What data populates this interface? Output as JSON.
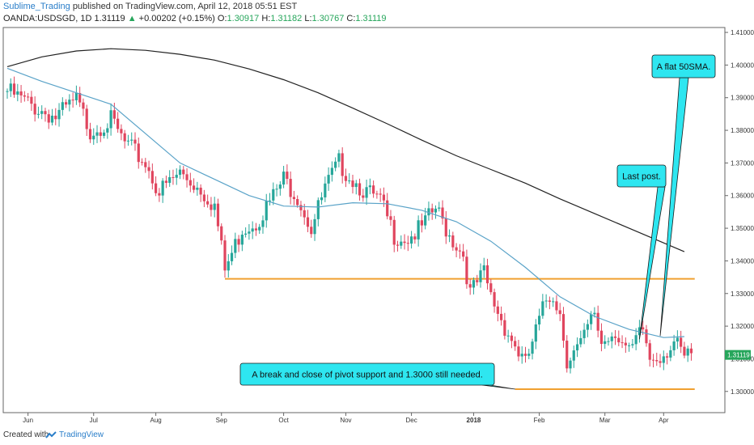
{
  "header": {
    "author": "Sublime_Trading",
    "published": "published on TradingView.com, April 12, 2018 05:51 EST",
    "symbol": "OANDA:USDSGD, 1D",
    "last": "1.31119",
    "change": "+0.00202 (+0.15%)",
    "o_label": "O:",
    "o_val": "1.30917",
    "h_label": "H:",
    "h_val": "1.31182",
    "l_label": "L:",
    "l_val": "1.30767",
    "c_label": "C:",
    "c_val": "1.31119"
  },
  "footer": {
    "created_with": "Created with",
    "brand": "TradingView"
  },
  "colors": {
    "up": "#26a69a",
    "down": "#e0455e",
    "sma50": "#5aa3c8",
    "sma200": "#222222",
    "level": "#f0a030",
    "callout": "#2ee6f0",
    "price_tag": "#26a65b"
  },
  "chart_data": {
    "type": "candlestick",
    "ylim": [
      1.2935,
      1.4115
    ],
    "ytick_labels": [
      "1.41000",
      "1.40000",
      "1.39000",
      "1.38000",
      "1.37000",
      "1.36000",
      "1.35000",
      "1.34000",
      "1.33000",
      "1.32000",
      "1.31000",
      "1.30000"
    ],
    "ytick_values": [
      1.41,
      1.4,
      1.39,
      1.38,
      1.37,
      1.36,
      1.35,
      1.34,
      1.33,
      1.32,
      1.31,
      1.3
    ],
    "xtick_labels": [
      "Jun",
      "Jul",
      "Aug",
      "Sep",
      "Oct",
      "Nov",
      "Dec",
      "2018",
      "Feb",
      "Mar",
      "Apr"
    ],
    "xtick_bars": [
      6,
      25,
      43,
      62,
      80,
      98,
      117,
      135,
      154,
      173,
      190
    ],
    "price_label": "1.31119",
    "horizontal_levels": [
      {
        "value": 1.3345,
        "from_bar": 63,
        "to_bar": 199
      },
      {
        "value": 1.3007,
        "from_bar": 147,
        "to_bar": 199
      }
    ],
    "sma200": [
      [
        0,
        1.3995
      ],
      [
        10,
        1.4025
      ],
      [
        20,
        1.4043
      ],
      [
        30,
        1.405
      ],
      [
        40,
        1.4045
      ],
      [
        50,
        1.4033
      ],
      [
        60,
        1.4015
      ],
      [
        70,
        1.3988
      ],
      [
        80,
        1.3955
      ],
      [
        90,
        1.3915
      ],
      [
        100,
        1.3868
      ],
      [
        110,
        1.382
      ],
      [
        120,
        1.377
      ],
      [
        130,
        1.3722
      ],
      [
        140,
        1.368
      ],
      [
        150,
        1.3638
      ],
      [
        160,
        1.359
      ],
      [
        170,
        1.3545
      ],
      [
        180,
        1.35
      ],
      [
        190,
        1.3455
      ],
      [
        196,
        1.3428
      ]
    ],
    "sma50": [
      [
        0,
        1.399
      ],
      [
        10,
        1.395
      ],
      [
        20,
        1.3915
      ],
      [
        30,
        1.388
      ],
      [
        40,
        1.379
      ],
      [
        50,
        1.37
      ],
      [
        60,
        1.365
      ],
      [
        70,
        1.36
      ],
      [
        80,
        1.3568
      ],
      [
        90,
        1.3565
      ],
      [
        100,
        1.3578
      ],
      [
        110,
        1.3575
      ],
      [
        120,
        1.3555
      ],
      [
        130,
        1.352
      ],
      [
        140,
        1.346
      ],
      [
        150,
        1.338
      ],
      [
        160,
        1.329
      ],
      [
        170,
        1.323
      ],
      [
        180,
        1.319
      ],
      [
        190,
        1.3165
      ],
      [
        196,
        1.3168
      ]
    ],
    "close_path": [
      [
        0,
        1.392
      ],
      [
        8,
        1.387
      ],
      [
        14,
        1.384
      ],
      [
        20,
        1.389
      ],
      [
        24,
        1.38
      ],
      [
        30,
        1.383
      ],
      [
        34,
        1.376
      ],
      [
        40,
        1.37
      ],
      [
        44,
        1.361
      ],
      [
        50,
        1.367
      ],
      [
        56,
        1.362
      ],
      [
        60,
        1.357
      ],
      [
        63,
        1.337
      ],
      [
        68,
        1.35
      ],
      [
        72,
        1.352
      ],
      [
        76,
        1.358
      ],
      [
        80,
        1.365
      ],
      [
        84,
        1.36
      ],
      [
        88,
        1.35
      ],
      [
        92,
        1.362
      ],
      [
        96,
        1.37
      ],
      [
        100,
        1.365
      ],
      [
        104,
        1.361
      ],
      [
        108,
        1.358
      ],
      [
        112,
        1.348
      ],
      [
        116,
        1.347
      ],
      [
        120,
        1.35
      ],
      [
        124,
        1.356
      ],
      [
        128,
        1.348
      ],
      [
        132,
        1.342
      ],
      [
        134,
        1.33
      ],
      [
        138,
        1.336
      ],
      [
        140,
        1.329
      ],
      [
        144,
        1.32
      ],
      [
        148,
        1.312
      ],
      [
        150,
        1.308
      ],
      [
        152,
        1.315
      ],
      [
        156,
        1.328
      ],
      [
        158,
        1.33
      ],
      [
        160,
        1.324
      ],
      [
        162,
        1.31
      ],
      [
        166,
        1.314
      ],
      [
        170,
        1.324
      ],
      [
        172,
        1.315
      ],
      [
        176,
        1.319
      ],
      [
        180,
        1.311
      ],
      [
        184,
        1.319
      ],
      [
        186,
        1.31
      ],
      [
        190,
        1.312
      ],
      [
        193,
        1.315
      ],
      [
        196,
        1.31
      ],
      [
        198,
        1.3112
      ]
    ],
    "annotations": [
      {
        "text": "A flat 50SMA.",
        "point_bar": 189,
        "point_value": 1.317
      },
      {
        "text": "Last post.",
        "point_bar": 183,
        "point_value": 1.316
      },
      {
        "text": "A break and close of pivot support and 1.3000 still needed.",
        "point_bar": 147,
        "point_value": 1.3007
      }
    ]
  }
}
